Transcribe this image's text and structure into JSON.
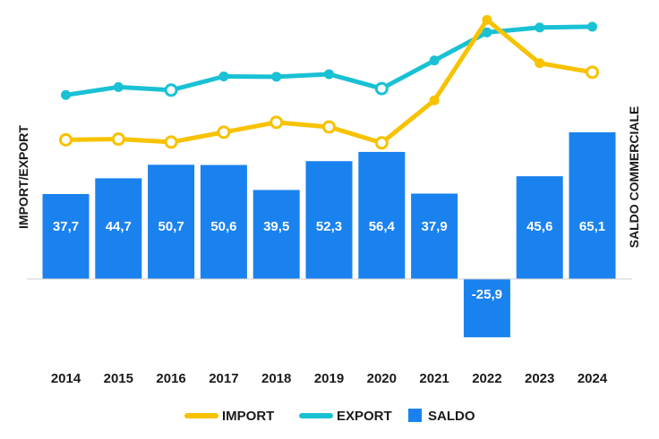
{
  "chart_data": {
    "type": "bar",
    "categories": [
      "2014",
      "2015",
      "2016",
      "2017",
      "2018",
      "2019",
      "2020",
      "2021",
      "2022",
      "2023",
      "2024"
    ],
    "ylabel_left": "IMPORT/EXPORT",
    "ylabel_right": "SALDO COMMERCIALE",
    "series": [
      {
        "name": "SALDO",
        "kind": "bar",
        "color": "#1a82ee",
        "values": [
          37.7,
          44.7,
          50.7,
          50.6,
          39.5,
          52.3,
          56.4,
          37.9,
          -25.9,
          45.6,
          65.1
        ],
        "labels": [
          "37,7",
          "44,7",
          "50,7",
          "50,6",
          "39,5",
          "52,3",
          "56,4",
          "37,9",
          "-25,9",
          "45,6",
          "65,1"
        ]
      },
      {
        "name": "IMPORT",
        "kind": "line",
        "color": "#f7c200",
        "values": [
          413,
          415,
          407,
          433,
          459,
          447,
          405,
          517,
          729,
          615,
          591
        ]
      },
      {
        "name": "EXPORT",
        "kind": "line",
        "color": "#19c1d4",
        "values": [
          531,
          552,
          544,
          580,
          579,
          586,
          548,
          622,
          696,
          709,
          711
        ]
      }
    ],
    "legend": {
      "position": "bottom",
      "items": [
        "IMPORT",
        "EXPORT",
        "SALDO"
      ]
    }
  }
}
